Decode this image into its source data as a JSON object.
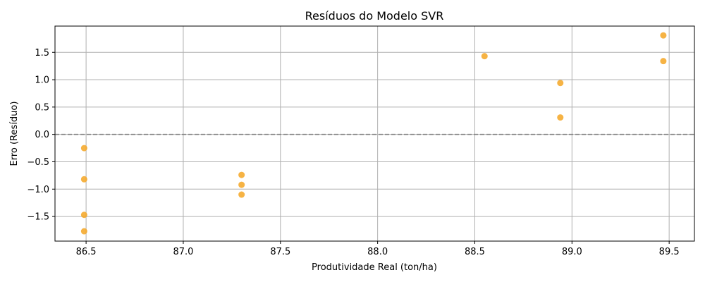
{
  "chart_data": {
    "type": "scatter",
    "title": "Resíduos do Modelo SVR",
    "xlabel": "Produtividade Real (ton/ha)",
    "ylabel": "Erro (Resíduo)",
    "xlim": [
      86.34,
      89.63
    ],
    "ylim": [
      -1.95,
      1.98
    ],
    "xticks": [
      "86.5",
      "87.0",
      "87.5",
      "88.0",
      "88.5",
      "89.0",
      "89.5"
    ],
    "yticks": [
      "−1.5",
      "−1.0",
      "−0.5",
      "0.0",
      "0.5",
      "1.0",
      "1.5"
    ],
    "grid": true,
    "reference_line": {
      "y": 0.0,
      "style": "dashed",
      "color": "#808080"
    },
    "marker_color": "#f5a623",
    "points": [
      {
        "x": 86.49,
        "y": -0.25
      },
      {
        "x": 86.49,
        "y": -0.82
      },
      {
        "x": 86.49,
        "y": -1.47
      },
      {
        "x": 86.49,
        "y": -1.77
      },
      {
        "x": 87.3,
        "y": -0.74
      },
      {
        "x": 87.3,
        "y": -0.92
      },
      {
        "x": 87.3,
        "y": -1.1
      },
      {
        "x": 88.55,
        "y": 1.43
      },
      {
        "x": 88.94,
        "y": 0.94
      },
      {
        "x": 88.94,
        "y": 0.31
      },
      {
        "x": 89.47,
        "y": 1.81
      },
      {
        "x": 89.47,
        "y": 1.34
      }
    ]
  }
}
